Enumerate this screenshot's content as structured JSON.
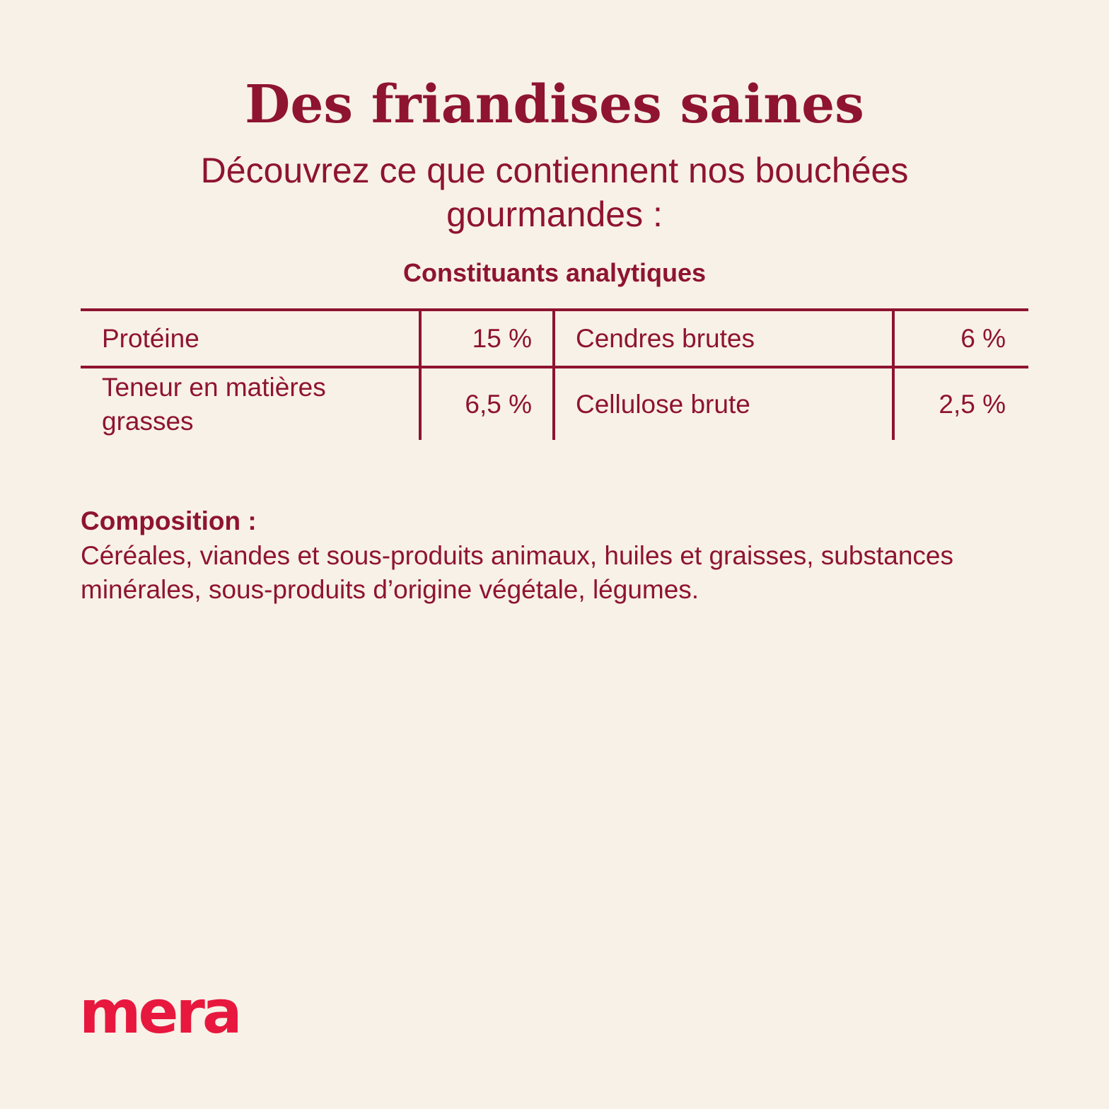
{
  "header": {
    "title": "Des friandises saines",
    "subtitle": "Découvrez ce que contiennent nos bouchées gourmandes :"
  },
  "analysis": {
    "heading": "Constituants analytiques",
    "rows": [
      {
        "label_left": "Protéine",
        "value_left": "15 %",
        "label_right": "Cendres brutes",
        "value_right": "6 %"
      },
      {
        "label_left": "Teneur en matières grasses",
        "value_left": "6,5 %",
        "label_right": "Cellulose brute",
        "value_right": "2,5 %"
      }
    ]
  },
  "composition": {
    "label": "Composition :",
    "text": "Céréales, viandes et sous-produits animaux, huiles et graisses, substances minérales, sous-produits d’origine végétale, légumes."
  },
  "brand": {
    "logo_text": "mera",
    "logo_color": "#e8173e"
  },
  "colors": {
    "background": "#f8f1e7",
    "accent": "#8e1430"
  }
}
